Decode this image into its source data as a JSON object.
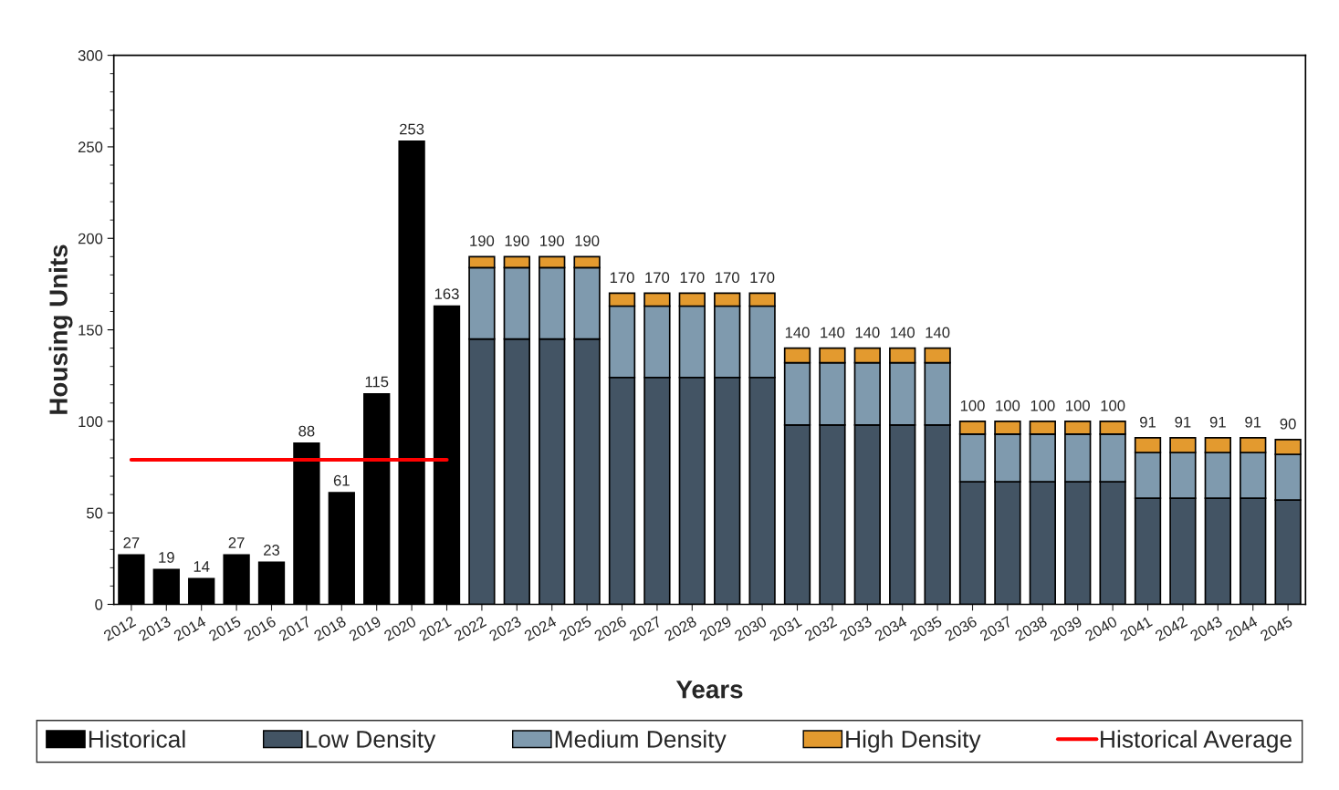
{
  "chart_data": {
    "type": "bar",
    "xlabel": "Years",
    "ylabel": "Housing Units",
    "categories": [
      "2012",
      "2013",
      "2014",
      "2015",
      "2016",
      "2017",
      "2018",
      "2019",
      "2020",
      "2021",
      "2022",
      "2023",
      "2024",
      "2025",
      "2026",
      "2027",
      "2028",
      "2029",
      "2030",
      "2031",
      "2032",
      "2033",
      "2034",
      "2035",
      "2036",
      "2037",
      "2038",
      "2039",
      "2040",
      "2041",
      "2042",
      "2043",
      "2044",
      "2045"
    ],
    "stacked": true,
    "ylim": [
      0,
      300
    ],
    "yticks": [
      0,
      50,
      100,
      150,
      200,
      250,
      300
    ],
    "grid": false,
    "legend": "bottom",
    "series": [
      {
        "name": "Historical",
        "color": "#000000",
        "values": [
          27,
          19,
          14,
          27,
          23,
          88,
          61,
          115,
          253,
          163,
          null,
          null,
          null,
          null,
          null,
          null,
          null,
          null,
          null,
          null,
          null,
          null,
          null,
          null,
          null,
          null,
          null,
          null,
          null,
          null,
          null,
          null,
          null,
          null
        ],
        "value_labels": [
          "27",
          "19",
          "14",
          "27",
          "23",
          "88",
          "61",
          "115",
          "253",
          "163",
          null,
          null,
          null,
          null,
          null,
          null,
          null,
          null,
          null,
          null,
          null,
          null,
          null,
          null,
          null,
          null,
          null,
          null,
          null,
          null,
          null,
          null,
          null,
          null
        ]
      },
      {
        "name": "Low Density",
        "color": "#435464",
        "values": [
          null,
          null,
          null,
          null,
          null,
          null,
          null,
          null,
          null,
          null,
          145,
          145,
          145,
          145,
          124,
          124,
          124,
          124,
          124,
          98,
          98,
          98,
          98,
          98,
          67,
          67,
          67,
          67,
          67,
          58,
          58,
          58,
          58,
          57
        ]
      },
      {
        "name": "Medium Density",
        "color": "#7f9aae",
        "values": [
          null,
          null,
          null,
          null,
          null,
          null,
          null,
          null,
          null,
          null,
          39,
          39,
          39,
          39,
          39,
          39,
          39,
          39,
          39,
          34,
          34,
          34,
          34,
          34,
          26,
          26,
          26,
          26,
          26,
          25,
          25,
          25,
          25,
          25
        ]
      },
      {
        "name": "High Density",
        "color": "#e39a2f",
        "values": [
          null,
          null,
          null,
          null,
          null,
          null,
          null,
          null,
          null,
          null,
          6,
          6,
          6,
          6,
          7,
          7,
          7,
          7,
          7,
          8,
          8,
          8,
          8,
          8,
          7,
          7,
          7,
          7,
          7,
          8,
          8,
          8,
          8,
          8
        ]
      },
      {
        "name": "Historical Average",
        "type": "line",
        "color": "#ff0000",
        "values": [
          79,
          79,
          79,
          79,
          79,
          79,
          79,
          79,
          79,
          79,
          null,
          null,
          null,
          null,
          null,
          null,
          null,
          null,
          null,
          null,
          null,
          null,
          null,
          null,
          null,
          null,
          null,
          null,
          null,
          null,
          null,
          null,
          null,
          null
        ]
      }
    ],
    "totals": [
      null,
      null,
      null,
      null,
      null,
      null,
      null,
      null,
      null,
      null,
      "190",
      "190",
      "190",
      "190",
      "170",
      "170",
      "170",
      "170",
      "170",
      "140",
      "140",
      "140",
      "140",
      "140",
      "100",
      "100",
      "100",
      "100",
      "100",
      "91",
      "91",
      "91",
      "91",
      "90"
    ]
  }
}
